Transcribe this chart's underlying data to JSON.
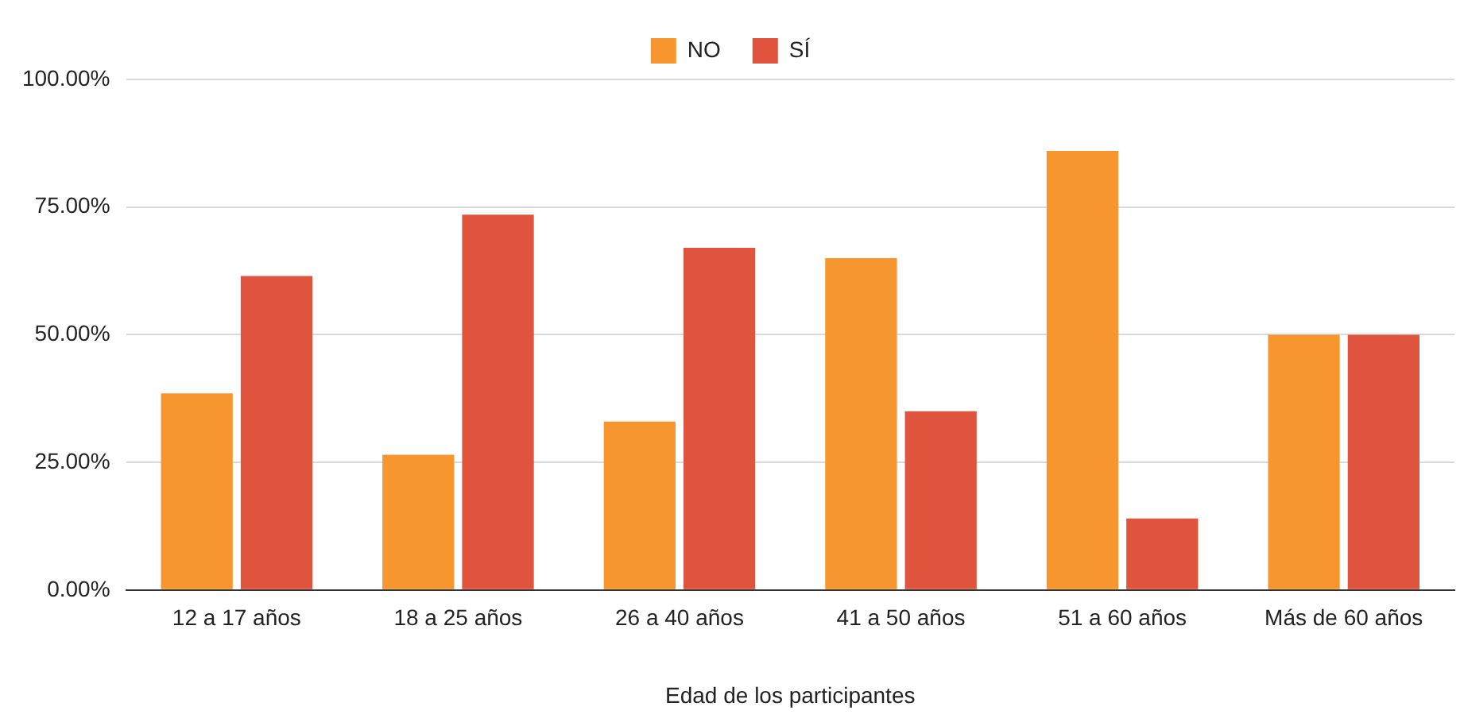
{
  "chart_data": {
    "type": "bar",
    "xlabel": "Edad de los participantes",
    "categories": [
      "12 a 17 años",
      "18 a 25 años",
      "26 a 40 años",
      "41 a 50 años",
      "51 a 60 años",
      "Más de 60 años"
    ],
    "series": [
      {
        "name": "NO",
        "color": "#f7962f",
        "values": [
          38.5,
          26.5,
          33,
          65,
          86,
          50
        ]
      },
      {
        "name": "SÍ",
        "color": "#e0533d",
        "values": [
          61.5,
          73.5,
          67,
          35,
          14,
          50
        ]
      }
    ],
    "ylim": [
      0,
      100
    ],
    "yticks": [
      {
        "value": 0,
        "label": "0.00%"
      },
      {
        "value": 25,
        "label": "25.00%"
      },
      {
        "value": 50,
        "label": "50.00%"
      },
      {
        "value": 75,
        "label": "75.00%"
      },
      {
        "value": 100,
        "label": "100.00%"
      }
    ],
    "grid": "y",
    "legend": "top"
  }
}
